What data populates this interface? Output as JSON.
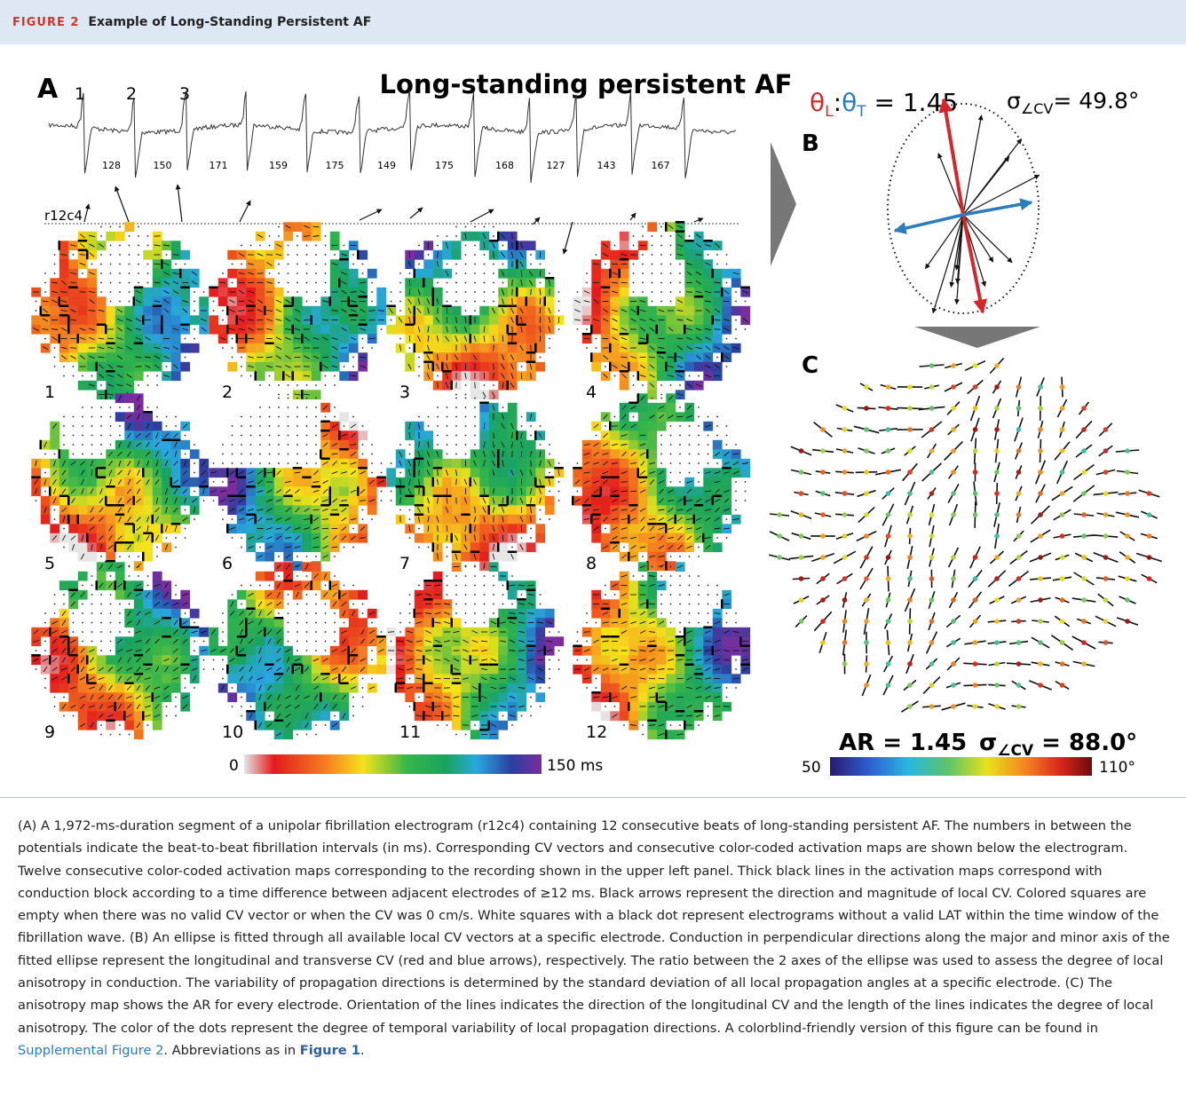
{
  "header": {
    "label": "FIGURE 2",
    "title": "Example of Long-Standing Persistent AF"
  },
  "panel_a": {
    "letter": "A",
    "title": "Long-standing persistent AF",
    "beat_labels": [
      "1",
      "2",
      "3"
    ],
    "intervals": [
      128,
      150,
      171,
      159,
      175,
      149,
      175,
      168,
      127,
      143,
      167
    ],
    "electrode": "r12c4",
    "map_labels": [
      "1",
      "2",
      "3",
      "4",
      "5",
      "6",
      "7",
      "8",
      "9",
      "10",
      "11",
      "12"
    ],
    "colorbar": {
      "min": "0",
      "max": "150 ms"
    }
  },
  "panel_b": {
    "letter": "B",
    "ratio": [
      "θ",
      "L",
      ":",
      "θ",
      "T",
      " = 1.45"
    ],
    "sigma": [
      "σ",
      "∠CV",
      "= 49.8°"
    ]
  },
  "panel_c": {
    "letter": "C",
    "ar": "AR = 1.45",
    "sigma": [
      "σ",
      "∠CV",
      " = 88.0°"
    ],
    "colorbar": {
      "min": "50",
      "max": "110°"
    }
  },
  "caption": [
    "(A) A 1,972-ms-duration segment of a unipolar fibrillation electrogram (r12c4) containing 12 consecutive beats of long-standing persistent AF. The numbers in between the potentials indicate the beat-to-beat fibrillation intervals (in ms). Corresponding CV vectors and consecutive color-coded activation maps are shown below the electrogram. Twelve consecutive color-coded activation maps corresponding to the recording shown in the upper left panel. Thick black lines in the activation maps correspond with conduction block according to a time difference between adjacent electrodes of ≥12 ms. Black arrows represent the direction and magnitude of local CV. Colored squares are empty when there was no valid CV vector or when the CV was 0 cm/s. White squares with a black dot represent electrograms without a valid LAT within the time window of the fibrillation wave. (B) An ellipse is fitted through all available local CV vectors at a specific electrode. Conduction in perpendicular directions along the major and minor axis of the fitted ellipse represent the longitudinal and transverse CV (red and blue arrows), respectively. The ratio between the 2 axes of the ellipse was used to assess the degree of local anisotropy in conduction. The variability of propagation directions is determined by the standard deviation of all local propagation angles at a specific electrode. (C) The anisotropy map shows the AR for every electrode. Orientation of the lines indicates the direction of the longitudinal CV and the length of the lines indicates the degree of local anisotropy. The color of the dots represent the degree of temporal variability of local propagation directions. A colorblind-friendly version of this figure can be found in ",
    "Supplemental Figure 2",
    ". Abbreviations as in ",
    "Figure 1",
    "."
  ]
}
